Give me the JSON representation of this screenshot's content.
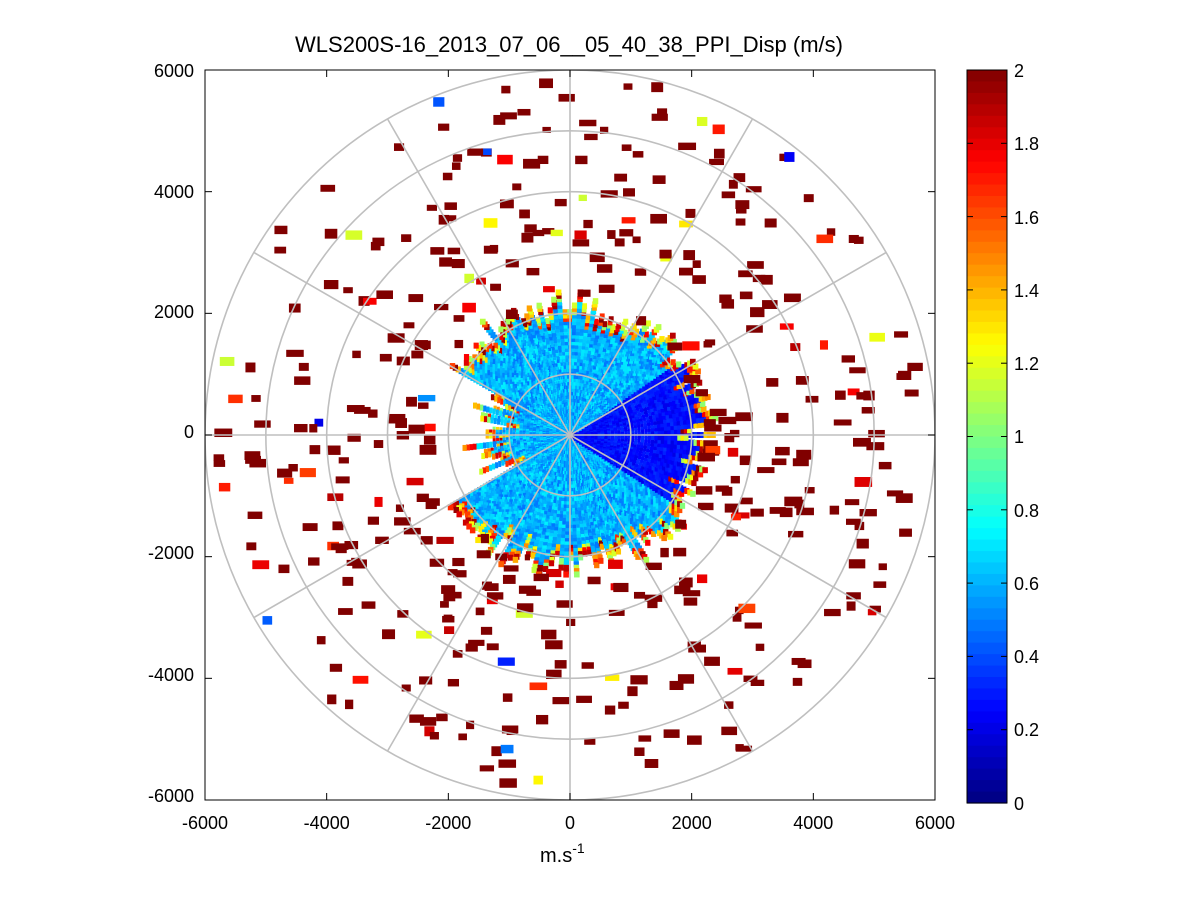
{
  "chart_data": {
    "type": "heatmap",
    "subtype": "polar-ppi-scan",
    "title": "WLS200S-16_2013_07_06__05_40_38_PPI_Disp (m/s)",
    "xlabel_base": "m.s",
    "xlabel_exponent": "-1",
    "ylabel": "",
    "xlim": [
      -6000,
      6000
    ],
    "ylim": [
      -6000,
      6000
    ],
    "xticks": [
      "-6000",
      "-4000",
      "-2000",
      "0",
      "2000",
      "4000",
      "6000"
    ],
    "yticks": [
      "6000",
      "4000",
      "2000",
      "0",
      "-2000",
      "-4000",
      "-6000"
    ],
    "polar_rings": [
      1000,
      2000,
      3000,
      4000,
      5000,
      6000
    ],
    "polar_spoke_step_deg": 30,
    "colorbar": {
      "colormap": "jet",
      "min": 0,
      "max": 2,
      "ticks": [
        "2",
        "1.8",
        "1.6",
        "1.4",
        "1.2",
        "1",
        "0.8",
        "0.6",
        "0.4",
        "0.2",
        "0"
      ]
    },
    "data_description_values": {
      "core_radius_m": 2200,
      "core_east_dispersion": 0.2,
      "core_west_dispersion": 0.55,
      "outer_scatter_dispersion": 2.0
    }
  }
}
